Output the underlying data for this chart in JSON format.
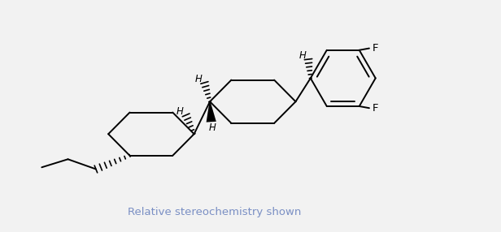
{
  "background_color": "#f2f2f2",
  "line_color": "#000000",
  "line_width": 1.4,
  "annotation_text": "Relative stereochemistry shown",
  "annotation_fontsize": 9.5,
  "annotation_color": "#7a8fc4",
  "label_fontsize": 8.5,
  "F_fontsize": 9.5,
  "H_color": "#000000",
  "F_color": "#000000",
  "xlim": [
    -1.5,
    9.5
  ],
  "ylim": [
    -1.2,
    3.8
  ]
}
